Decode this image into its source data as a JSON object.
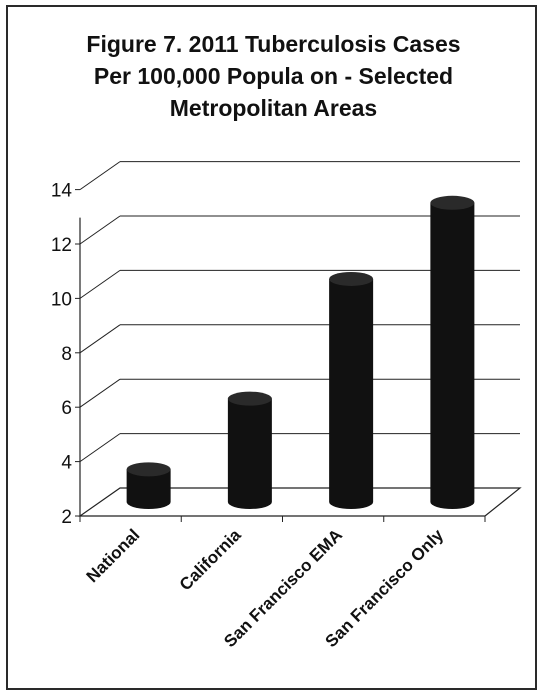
{
  "chart_data": {
    "type": "bar",
    "title_lines": [
      "Figure 7. 2011 Tuberculosis Cases",
      "Per 100,000 Popula   on - Selected",
      "Metropolitan Areas"
    ],
    "categories": [
      "National",
      "California",
      "San Francisco EMA",
      "San Francisco Only"
    ],
    "values": [
      3.2,
      5.8,
      10.2,
      13.0
    ],
    "ylim": [
      2,
      14
    ],
    "yticks": [
      "2",
      "4",
      "6",
      "8",
      "10",
      "12",
      "14"
    ],
    "xlabel": "",
    "ylabel": "",
    "grid": true,
    "bar_color": "#111111"
  }
}
